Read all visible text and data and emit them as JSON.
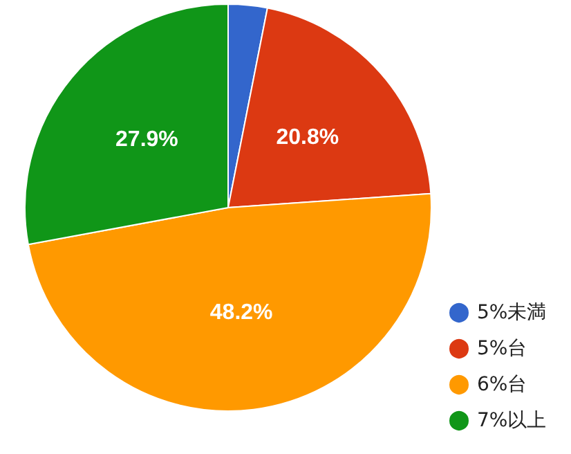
{
  "chart_data": {
    "type": "pie",
    "categories": [
      "5%未満",
      "5%台",
      "6%台",
      "7%以上"
    ],
    "values": [
      3.1,
      20.8,
      48.2,
      27.9
    ],
    "colors": [
      "#3366cc",
      "#dc3912",
      "#ff9900",
      "#109618"
    ],
    "value_labels": [
      null,
      "20.8%",
      "48.2%",
      "27.9%"
    ],
    "legend": "bottom right"
  }
}
